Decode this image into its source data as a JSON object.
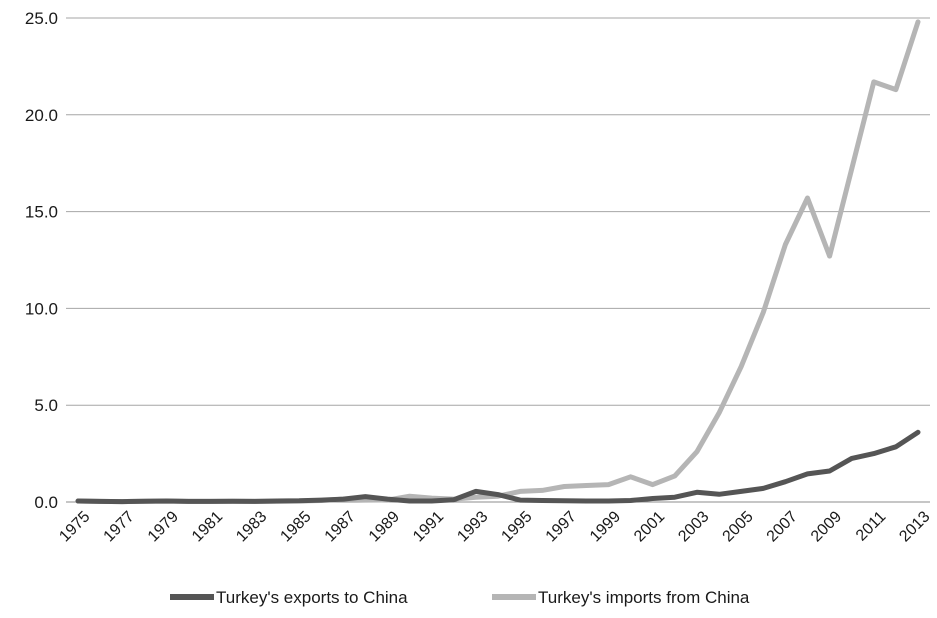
{
  "chart_data": {
    "type": "line",
    "title": "",
    "xlabel": "",
    "ylabel": "",
    "ylim": [
      0,
      25
    ],
    "y_ticks": [
      "0.0",
      "5.0",
      "10.0",
      "15.0",
      "20.0",
      "25.0"
    ],
    "x": [
      1975,
      1976,
      1977,
      1978,
      1979,
      1980,
      1981,
      1982,
      1983,
      1984,
      1985,
      1986,
      1987,
      1988,
      1989,
      1990,
      1991,
      1992,
      1993,
      1994,
      1995,
      1996,
      1997,
      1998,
      1999,
      2000,
      2001,
      2002,
      2003,
      2004,
      2005,
      2006,
      2007,
      2008,
      2009,
      2010,
      2011,
      2012,
      2013
    ],
    "x_tick_labels": [
      "1975",
      "1977",
      "1979",
      "1981",
      "1983",
      "1985",
      "1987",
      "1989",
      "1991",
      "1993",
      "1995",
      "1997",
      "1999",
      "2001",
      "2003",
      "2005",
      "2007",
      "2009",
      "2011",
      "2013"
    ],
    "grid": "horizontal",
    "legend_position": "bottom",
    "series": [
      {
        "name": "Turkey's exports to China",
        "color": "#555555",
        "values": [
          0.05,
          0.03,
          0.02,
          0.04,
          0.05,
          0.03,
          0.03,
          0.04,
          0.03,
          0.05,
          0.06,
          0.1,
          0.15,
          0.28,
          0.15,
          0.05,
          0.05,
          0.12,
          0.55,
          0.38,
          0.1,
          0.08,
          0.06,
          0.05,
          0.05,
          0.08,
          0.18,
          0.25,
          0.5,
          0.4,
          0.55,
          0.7,
          1.05,
          1.45,
          1.6,
          2.25,
          2.5,
          2.85,
          3.6
        ]
      },
      {
        "name": "Turkey's imports from China",
        "color": "#b5b5b5",
        "values": [
          0.05,
          0.03,
          0.02,
          0.04,
          0.05,
          0.03,
          0.03,
          0.04,
          0.03,
          0.04,
          0.05,
          0.08,
          0.15,
          0.12,
          0.1,
          0.3,
          0.2,
          0.15,
          0.25,
          0.3,
          0.55,
          0.6,
          0.8,
          0.85,
          0.9,
          1.3,
          0.9,
          1.35,
          2.6,
          4.6,
          7.0,
          9.8,
          13.3,
          15.7,
          12.7,
          17.2,
          21.7,
          21.3,
          24.8
        ]
      }
    ]
  }
}
